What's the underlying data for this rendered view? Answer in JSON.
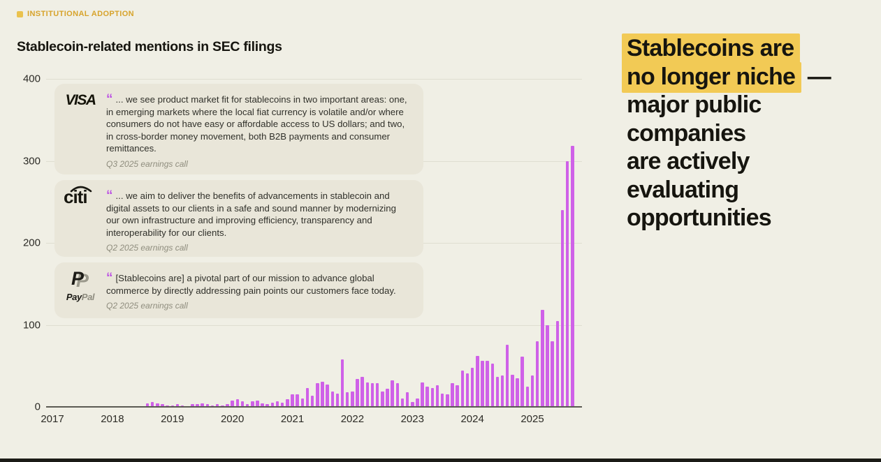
{
  "page": {
    "badge": {
      "label": "INSTITUTIONAL ADOPTION",
      "color": "#d7a32b"
    },
    "title": "Stablecoin-related mentions in SEC filings",
    "headline": {
      "full_text": "Stablecoins are no longer niche — major public companies are actively evaluating opportunities",
      "highlight_color": "#f2ca55",
      "lines": [
        {
          "text": "Stablecoins are",
          "highlight": true,
          "suffix": ""
        },
        {
          "text": "no longer niche",
          "highlight": true,
          "suffix": " —"
        },
        {
          "text": "major public",
          "highlight": false,
          "suffix": ""
        },
        {
          "text": "companies",
          "highlight": false,
          "suffix": ""
        },
        {
          "text": "are actively",
          "highlight": false,
          "suffix": ""
        },
        {
          "text": "evaluating",
          "highlight": false,
          "suffix": ""
        },
        {
          "text": "opportunities",
          "highlight": false,
          "suffix": ""
        }
      ]
    }
  },
  "quotes": [
    {
      "company": "Visa",
      "text": "... we see product market fit for stablecoins in two important areas: one, in emerging markets where the local fiat currency is volatile and/or where consumers do not have easy or affordable access to US dollars; and two, in cross-border money movement, both B2B payments and consumer remittances.",
      "source": "Q3 2025 earnings call"
    },
    {
      "company": "Citi",
      "text": "... we aim to deliver the benefits of advancements in stablecoin and digital assets to our clients in a safe and sound manner by modernizing our own infrastructure and improving efficiency, transparency and interoperability for our clients.",
      "source": "Q2 2025 earnings call"
    },
    {
      "company": "PayPal",
      "text": "[Stablecoins are] a pivotal part of our mission to advance global commerce by directly addressing pain points our customers face today.",
      "source": "Q2 2025 earnings call"
    }
  ],
  "quote_logo_words": {
    "visa": "VISA",
    "citi": "citi",
    "paypal_p": "P",
    "paypal_pay": "Pay",
    "paypal_pal": "Pal"
  },
  "chart_data": {
    "type": "bar",
    "title": "Stablecoin-related mentions in SEC filings",
    "xlabel": "",
    "ylabel": "",
    "ylim": [
      0,
      400
    ],
    "y_ticks": [
      0,
      100,
      200,
      300,
      400
    ],
    "x_tick_labels": [
      "2017",
      "2018",
      "2019",
      "2020",
      "2021",
      "2022",
      "2023",
      "2024",
      "2025"
    ],
    "grid": "horizontal",
    "legend": "none",
    "bar_color": "#cf61e8",
    "frequency": "monthly",
    "x_range": "Jan 2017 - Sep 2025",
    "monthly_values_by_year": {
      "2017": [
        0,
        0,
        0,
        0,
        0,
        0,
        0,
        0,
        0,
        0,
        0,
        0
      ],
      "2018": [
        0,
        0,
        0,
        0,
        0,
        0,
        0,
        4,
        6,
        4,
        3,
        2
      ],
      "2019": [
        2,
        3,
        2,
        0,
        3,
        3,
        4,
        3,
        2,
        3,
        2,
        3
      ],
      "2020": [
        8,
        9,
        7,
        3,
        7,
        8,
        4,
        3,
        5,
        7,
        5,
        9
      ],
      "2021": [
        15,
        15,
        10,
        23,
        14,
        29,
        31,
        27,
        19,
        16,
        58,
        18
      ],
      "2022": [
        19,
        34,
        37,
        30,
        29,
        29,
        19,
        22,
        32,
        29,
        10,
        18
      ],
      "2023": [
        6,
        10,
        30,
        25,
        23,
        26,
        16,
        15,
        29,
        26,
        44,
        41
      ],
      "2024": [
        48,
        62,
        56,
        56,
        53,
        37,
        38,
        76,
        39,
        35,
        61,
        25
      ],
      "2025": [
        38,
        80,
        118,
        100,
        80,
        105,
        240,
        300,
        318
      ]
    }
  }
}
